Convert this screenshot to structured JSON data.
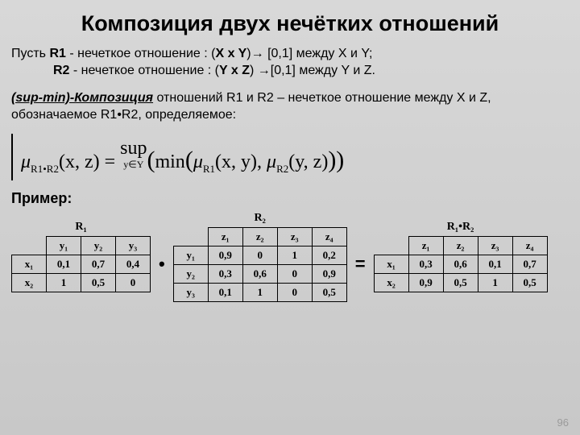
{
  "title": "Композиция двух нечётких отношений",
  "intro": {
    "l1_a": "Пусть ",
    "l1_b": "R1",
    "l1_c": " - нечеткое отношение : (",
    "l1_d": "X x Y",
    "l1_e": ")→ [0,1] между X и Y;",
    "l2_a": "R2",
    "l2_b": " - нечеткое отношение : (",
    "l2_c": "Y x Z",
    "l2_d": ") →[0,1] между Y и Z."
  },
  "def": {
    "u": "(sup-min)-Композиция",
    "rest": " отношений R1 и R2 – нечеткое отношение между X и Z, обозначаемое R1•R2, определяемое:"
  },
  "formula": {
    "mu": "μ",
    "sub1": "R1•R2",
    "args1": "(x, z) = ",
    "sup": "sup",
    "supcond": "y∈Y",
    "open": "(",
    "min": "min",
    "open2": "(",
    "mu2": "μ",
    "sub2": "R1",
    "args2": "(x, y), ",
    "mu3": "μ",
    "sub3": "R2",
    "args3": "(y, z)",
    "close": "))"
  },
  "example": "Пример:",
  "t1": {
    "title": "R₁",
    "cols": [
      "y₁",
      "y₂",
      "y₃"
    ],
    "rows": [
      {
        "h": "x₁",
        "v": [
          "0,1",
          "0,7",
          "0,4"
        ]
      },
      {
        "h": "x₂",
        "v": [
          "1",
          "0,5",
          "0"
        ]
      }
    ]
  },
  "dot": "•",
  "t2": {
    "title": "R₂",
    "cols": [
      "z₁",
      "z₂",
      "z₃",
      "z₄"
    ],
    "rows": [
      {
        "h": "y₁",
        "v": [
          "0,9",
          "0",
          "1",
          "0,2"
        ]
      },
      {
        "h": "y₂",
        "v": [
          "0,3",
          "0,6",
          "0",
          "0,9"
        ]
      },
      {
        "h": "y₃",
        "v": [
          "0,1",
          "1",
          "0",
          "0,5"
        ]
      }
    ]
  },
  "eq": "=",
  "t3": {
    "title": "R₁•R₂",
    "cols": [
      "z₁",
      "z₂",
      "z₃",
      "z₄"
    ],
    "rows": [
      {
        "h": "x₁",
        "v": [
          "0,3",
          "0,6",
          "0,1",
          "0,7"
        ]
      },
      {
        "h": "x₂",
        "v": [
          "0,9",
          "0,5",
          "1",
          "0,5"
        ]
      }
    ]
  },
  "page": "96"
}
